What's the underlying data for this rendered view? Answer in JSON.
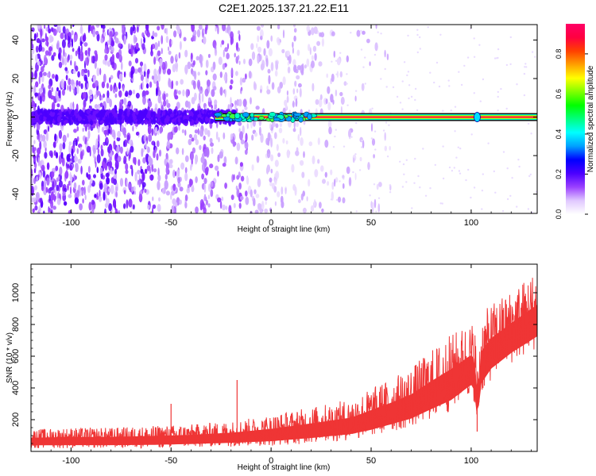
{
  "figure": {
    "title": "C2E1.2025.137.21.22.E11"
  },
  "chart_data": [
    {
      "type": "heatmap",
      "xlabel": "Height of straight line (km)",
      "ylabel": "Frequency (Hz)",
      "xlim": [
        -120,
        133
      ],
      "ylim": [
        -50,
        48
      ],
      "x_ticks": [
        -100,
        -50,
        0,
        50,
        100
      ],
      "x_tick_labels": [
        "-100",
        "-50",
        "0",
        "50",
        "100"
      ],
      "y_ticks": [
        -40,
        -20,
        0,
        20,
        40
      ],
      "y_tick_labels": [
        "-40",
        "-20",
        "0",
        "20",
        "40"
      ],
      "grid": false,
      "colorbar": {
        "label": "Normalized spectral amplitude",
        "range": [
          0,
          0.95
        ],
        "ticks": [
          0,
          0.2,
          0.4,
          0.6,
          0.8
        ],
        "tick_labels": [
          "0.0",
          "0.2",
          "0.4",
          "0.6",
          "0.8"
        ],
        "colors": [
          "#ffffff",
          "#e0c8ff",
          "#9a40ff",
          "#4b00ff",
          "#0000ff",
          "#00a0ff",
          "#00ffff",
          "#00ff80",
          "#00ff00",
          "#80ff00",
          "#ffff00",
          "#ffa000",
          "#ff4000",
          "#ff0040",
          "#ff0066"
        ]
      },
      "features": {
        "signal_line_frequency_hz": 0,
        "signal_line_start_km": -28,
        "signal_line_end_km": 133,
        "noise_visible_until_km": 30,
        "highlight_at_km": 103
      }
    },
    {
      "type": "line",
      "xlabel": "Height of straight line (km)",
      "ylabel": "SNR (10 * v/v)",
      "xlim": [
        -120,
        133
      ],
      "ylim": [
        0,
        1180
      ],
      "x_ticks": [
        -100,
        -50,
        0,
        50,
        100
      ],
      "x_tick_labels": [
        "-100",
        "-50",
        "0",
        "50",
        "100"
      ],
      "y_ticks": [
        200,
        400,
        600,
        800,
        1000
      ],
      "y_tick_labels": [
        "200",
        "400",
        "600",
        "800",
        "1000"
      ],
      "grid": false,
      "series_color": "#ef3535",
      "envelope": {
        "x": [
          -120,
          -100,
          -80,
          -60,
          -40,
          -20,
          0,
          20,
          40,
          50,
          60,
          70,
          80,
          90,
          100,
          102,
          103,
          105,
          110,
          120,
          133
        ],
        "lower": [
          20,
          20,
          20,
          20,
          25,
          30,
          35,
          50,
          70,
          90,
          120,
          150,
          200,
          250,
          350,
          300,
          120,
          350,
          450,
          550,
          650
        ],
        "upper": [
          140,
          150,
          150,
          160,
          170,
          190,
          230,
          280,
          330,
          400,
          460,
          530,
          640,
          740,
          820,
          800,
          500,
          860,
          930,
          1020,
          1150
        ]
      },
      "spikes": [
        {
          "x": -50,
          "y": 300
        },
        {
          "x": -17,
          "y": 450
        },
        {
          "x": 103,
          "y": 125
        }
      ]
    }
  ]
}
